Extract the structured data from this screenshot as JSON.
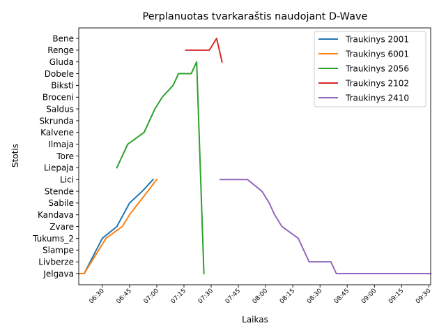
{
  "chart_data": {
    "type": "line",
    "title": "Perplanuotas tvarkaraštis naudojant D-Wave",
    "xlabel": "Laikas",
    "ylabel": "Stotis",
    "x_ticks": [
      "06:30",
      "06:45",
      "07:00",
      "07:15",
      "07:30",
      "07:45",
      "08:00",
      "08:15",
      "08:30",
      "08:45",
      "09:00",
      "09:15",
      "09:30"
    ],
    "y_categories": [
      "Jelgava",
      "Livberze",
      "Slampe",
      "Tukums_2",
      "Zvare",
      "Kandava",
      "Sabile",
      "Stende",
      "Lici",
      "Liepaja",
      "Tore",
      "Ilmaja",
      "Kalvene",
      "Skrunda",
      "Saldus",
      "Broceni",
      "Biksti",
      "Dobele",
      "Gluda",
      "Renge",
      "Bene"
    ],
    "xlim": [
      "06:17",
      "09:31"
    ],
    "grid": false,
    "legend_position": "top-right",
    "series": [
      {
        "name": "Traukinys 2001",
        "color": "#1f77b4",
        "points": [
          [
            "06:17",
            "Jelgava"
          ],
          [
            "06:20",
            "Jelgava"
          ],
          [
            "06:30",
            "Tukums_2"
          ],
          [
            "06:38",
            "Zvare"
          ],
          [
            "06:45",
            "Sabile"
          ],
          [
            "06:52",
            "Stende"
          ],
          [
            "06:58",
            "Lici"
          ]
        ]
      },
      {
        "name": "Traukinys 6001",
        "color": "#ff7f0e",
        "points": [
          [
            "06:17",
            "Jelgava"
          ],
          [
            "06:20",
            "Jelgava"
          ],
          [
            "06:32",
            "Tukums_2"
          ],
          [
            "06:41",
            "Zvare"
          ],
          [
            "06:45",
            "Kandava"
          ],
          [
            "06:50",
            "Sabile"
          ],
          [
            "06:55",
            "Stende"
          ],
          [
            "07:00",
            "Lici"
          ]
        ]
      },
      {
        "name": "Traukinys 2056",
        "color": "#2ca02c",
        "points": [
          [
            "06:38",
            "Liepaja"
          ],
          [
            "06:44",
            "Ilmaja"
          ],
          [
            "06:53",
            "Kalvene"
          ],
          [
            "06:59",
            "Saldus"
          ],
          [
            "07:03",
            "Broceni"
          ],
          [
            "07:09",
            "Biksti"
          ],
          [
            "07:12",
            "Dobele"
          ],
          [
            "07:19",
            "Dobele"
          ],
          [
            "07:22",
            "Gluda"
          ],
          [
            "07:26",
            "Jelgava"
          ]
        ]
      },
      {
        "name": "Traukinys 2102",
        "color": "#d62728",
        "points": [
          [
            "07:16",
            "Renge"
          ],
          [
            "07:29",
            "Renge"
          ],
          [
            "07:33",
            "Bene"
          ],
          [
            "07:36",
            "Gluda"
          ]
        ]
      },
      {
        "name": "Traukinys 2410",
        "color": "#9467bd",
        "points": [
          [
            "07:35",
            "Lici"
          ],
          [
            "07:50",
            "Lici"
          ],
          [
            "07:58",
            "Stende"
          ],
          [
            "08:02",
            "Sabile"
          ],
          [
            "08:05",
            "Kandava"
          ],
          [
            "08:09",
            "Zvare"
          ],
          [
            "08:18",
            "Tukums_2"
          ],
          [
            "08:21",
            "Slampe"
          ],
          [
            "08:24",
            "Livberze"
          ],
          [
            "08:36",
            "Livberze"
          ],
          [
            "08:39",
            "Jelgava"
          ],
          [
            "09:31",
            "Jelgava"
          ]
        ]
      }
    ]
  }
}
